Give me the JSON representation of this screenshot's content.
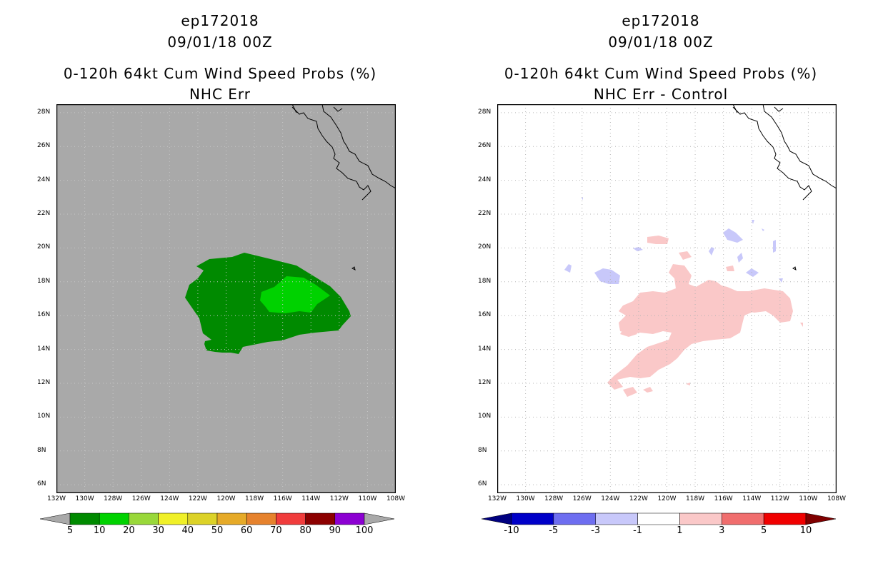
{
  "left_panel": {
    "storm_id": "ep172018",
    "datetime": "09/01/18 00Z",
    "product": "0-120h 64kt Cum Wind Speed Probs (%)",
    "subtitle": "NHC Err",
    "background_color": "#a9a9a9"
  },
  "right_panel": {
    "storm_id": "ep172018",
    "datetime": "09/01/18 00Z",
    "product": "0-120h 64kt Cum Wind Speed Probs (%)",
    "subtitle": "NHC Err - Control",
    "background_color": "#ffffff"
  },
  "axes": {
    "lat_labels": [
      "28N",
      "26N",
      "24N",
      "22N",
      "20N",
      "18N",
      "16N",
      "14N",
      "12N",
      "10N",
      "8N",
      "6N"
    ],
    "lon_labels": [
      "132W",
      "130W",
      "128W",
      "126W",
      "124W",
      "122W",
      "120W",
      "118W",
      "116W",
      "114W",
      "112W",
      "110W",
      "108W"
    ],
    "lat_range": [
      5.5,
      28.5
    ],
    "lon_range": [
      -132,
      -108
    ]
  },
  "left_colorbar": {
    "colors": [
      "#008a00",
      "#00d200",
      "#99d83a",
      "#f0f028",
      "#dcd228",
      "#e6aa28",
      "#e6822d",
      "#f03c3c",
      "#8c0000",
      "#8c00d2"
    ],
    "end_color": "#a9a9a9",
    "labels": [
      "5",
      "10",
      "20",
      "30",
      "40",
      "50",
      "60",
      "70",
      "80",
      "90",
      "100"
    ]
  },
  "right_colorbar": {
    "colors": [
      "#0000c8",
      "#6e6ef0",
      "#c8c8fa",
      "#ffffff",
      "#fac8c8",
      "#f06e6e",
      "#f00000"
    ],
    "end_low": "#000080",
    "end_high": "#800000",
    "labels": [
      "-10",
      "-5",
      "-3",
      "-1",
      "1",
      "3",
      "5",
      "10"
    ]
  },
  "colors": {
    "prob_5": "#008a00",
    "prob_10": "#00d200",
    "diff_pos": "#fac8c8",
    "diff_neg": "#c8c8fa",
    "gridline": "#b4b4b4",
    "coast": "#000000"
  }
}
